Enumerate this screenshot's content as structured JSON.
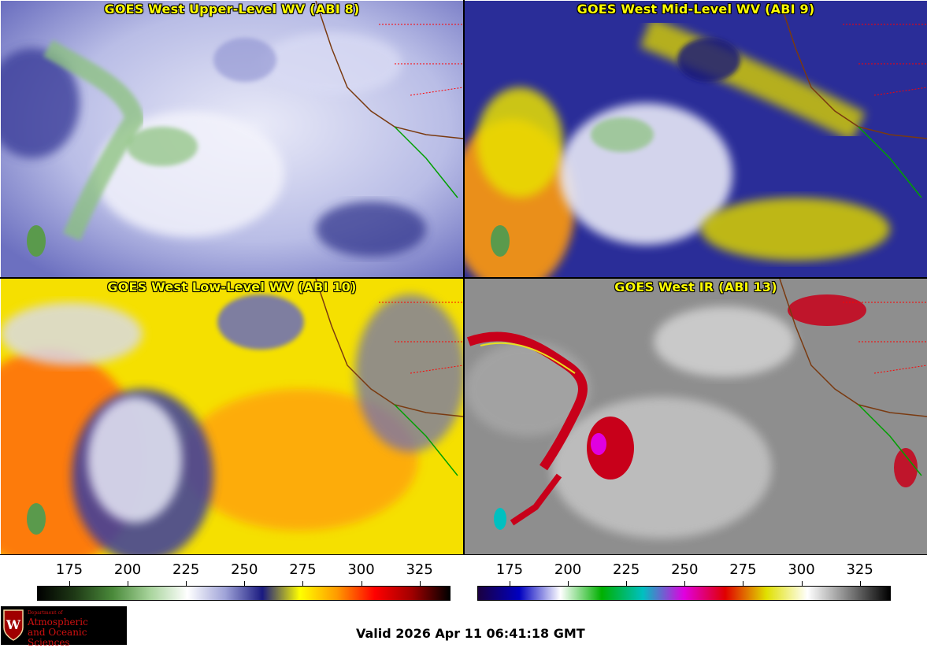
{
  "panels": [
    {
      "title": "GOES West Upper-Level WV (ABI 8)"
    },
    {
      "title": "GOES West Mid-Level WV (ABI 9)"
    },
    {
      "title": "GOES West Low-Level WV (ABI 10)"
    },
    {
      "title": "GOES West IR (ABI 13)"
    }
  ],
  "colorbars": [
    {
      "name": "water-vapor",
      "ticks": [
        "175",
        "200",
        "225",
        "250",
        "275",
        "300",
        "325"
      ],
      "gradient": [
        "#000000",
        "#1f3a16",
        "#4a8a3a",
        "#a8d49c",
        "#ffffff",
        "#9fa3d8",
        "#1a1a80",
        "#ffff00",
        "#ff9900",
        "#ff0000",
        "#a00000",
        "#000000"
      ]
    },
    {
      "name": "infrared",
      "ticks": [
        "175",
        "200",
        "225",
        "250",
        "275",
        "300",
        "325"
      ],
      "gradient": [
        "#1a0040",
        "#0000c0",
        "#ffffff",
        "#00b000",
        "#00c0c0",
        "#e000e0",
        "#e00000",
        "#e0e000",
        "#ffffff",
        "#808080",
        "#000000"
      ]
    }
  ],
  "logo": {
    "line1": "Department of",
    "line2": "Atmospheric",
    "line3": "and Oceanic Sciences"
  },
  "valid_text": "Valid 2026 Apr 11 06:41:18 GMT"
}
